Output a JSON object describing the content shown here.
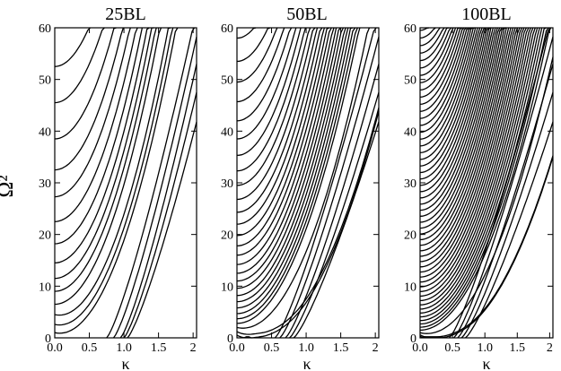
{
  "figure": {
    "ylabel": "Ω²",
    "xlabel": "κ"
  },
  "chart_data": [
    {
      "type": "line",
      "title": "25BL",
      "xlabel": "κ",
      "ylabel": "Ω²",
      "xlim": [
        0,
        2.05
      ],
      "ylim": [
        0,
        60
      ],
      "xticks": [
        0.0,
        0.5,
        1.0,
        1.5,
        2
      ],
      "xtick_labels": [
        "0.0",
        "0.5",
        "1.0",
        "1.5",
        "2"
      ],
      "yticks": [
        0,
        10,
        20,
        30,
        40,
        50,
        60
      ],
      "ytick_labels": [
        "0",
        "10",
        "20",
        "30",
        "40",
        "50",
        "60"
      ],
      "zero_line": "dotted",
      "series": [
        {
          "type": "offset_parabola",
          "start_values": [
            1,
            2.6,
            4.5,
            6.5,
            9,
            11.5,
            14.5,
            18.2,
            22.5,
            27.3,
            32.5,
            38.5,
            45.5,
            52.5
          ]
        },
        {
          "type": "dispersion_from_axis",
          "kappa_at_zero": [
            0.75,
            0.85,
            0.95,
            1.0,
            1.05
          ]
        }
      ]
    },
    {
      "type": "line",
      "title": "50BL",
      "xlabel": "κ",
      "ylabel": "",
      "xlim": [
        0,
        2.05
      ],
      "ylim": [
        0,
        60
      ],
      "xticks": [
        0.0,
        0.5,
        1.0,
        1.5,
        2
      ],
      "xtick_labels": [
        "0.0",
        "0.5",
        "1.0",
        "1.5",
        "2"
      ],
      "yticks": [
        0,
        10,
        20,
        30,
        40,
        50,
        60
      ],
      "ytick_labels": [
        "0",
        "10",
        "20",
        "30",
        "40",
        "50",
        "60"
      ],
      "zero_line": "dotted",
      "series": [
        {
          "type": "offset_parabola",
          "start_values": [
            0.5,
            1.2,
            2,
            2.8,
            3.7,
            4.7,
            5.8,
            7,
            8.2,
            9.6,
            11,
            12.5,
            14.2,
            16,
            17.8,
            19.8,
            22,
            24.3,
            26.8,
            29.5,
            32.3,
            35.3,
            38.5,
            42,
            45.7,
            49.5,
            53.5,
            58
          ]
        },
        {
          "type": "dispersion_from_axis",
          "kappa_at_zero": [
            0.55,
            0.62,
            0.7,
            0.76,
            0.82
          ]
        }
      ]
    },
    {
      "type": "line",
      "title": "100BL",
      "xlabel": "κ",
      "ylabel": "",
      "xlim": [
        0,
        2.05
      ],
      "ylim": [
        0,
        60
      ],
      "xticks": [
        0.0,
        0.5,
        1.0,
        1.5,
        2
      ],
      "xtick_labels": [
        "0.0",
        "0.5",
        "1.0",
        "1.5",
        "2"
      ],
      "yticks": [
        0,
        10,
        20,
        30,
        40,
        50,
        60
      ],
      "ytick_labels": [
        "0",
        "10",
        "20",
        "30",
        "40",
        "50",
        "60"
      ],
      "zero_line": "dotted",
      "series": [
        {
          "type": "offset_parabola",
          "count": 55,
          "first_value": 0.3,
          "last_value": 59.5
        },
        {
          "type": "dispersion_from_axis",
          "kappa_at_zero": [
            0.45,
            0.52,
            0.58,
            0.64,
            0.7
          ]
        }
      ]
    }
  ]
}
